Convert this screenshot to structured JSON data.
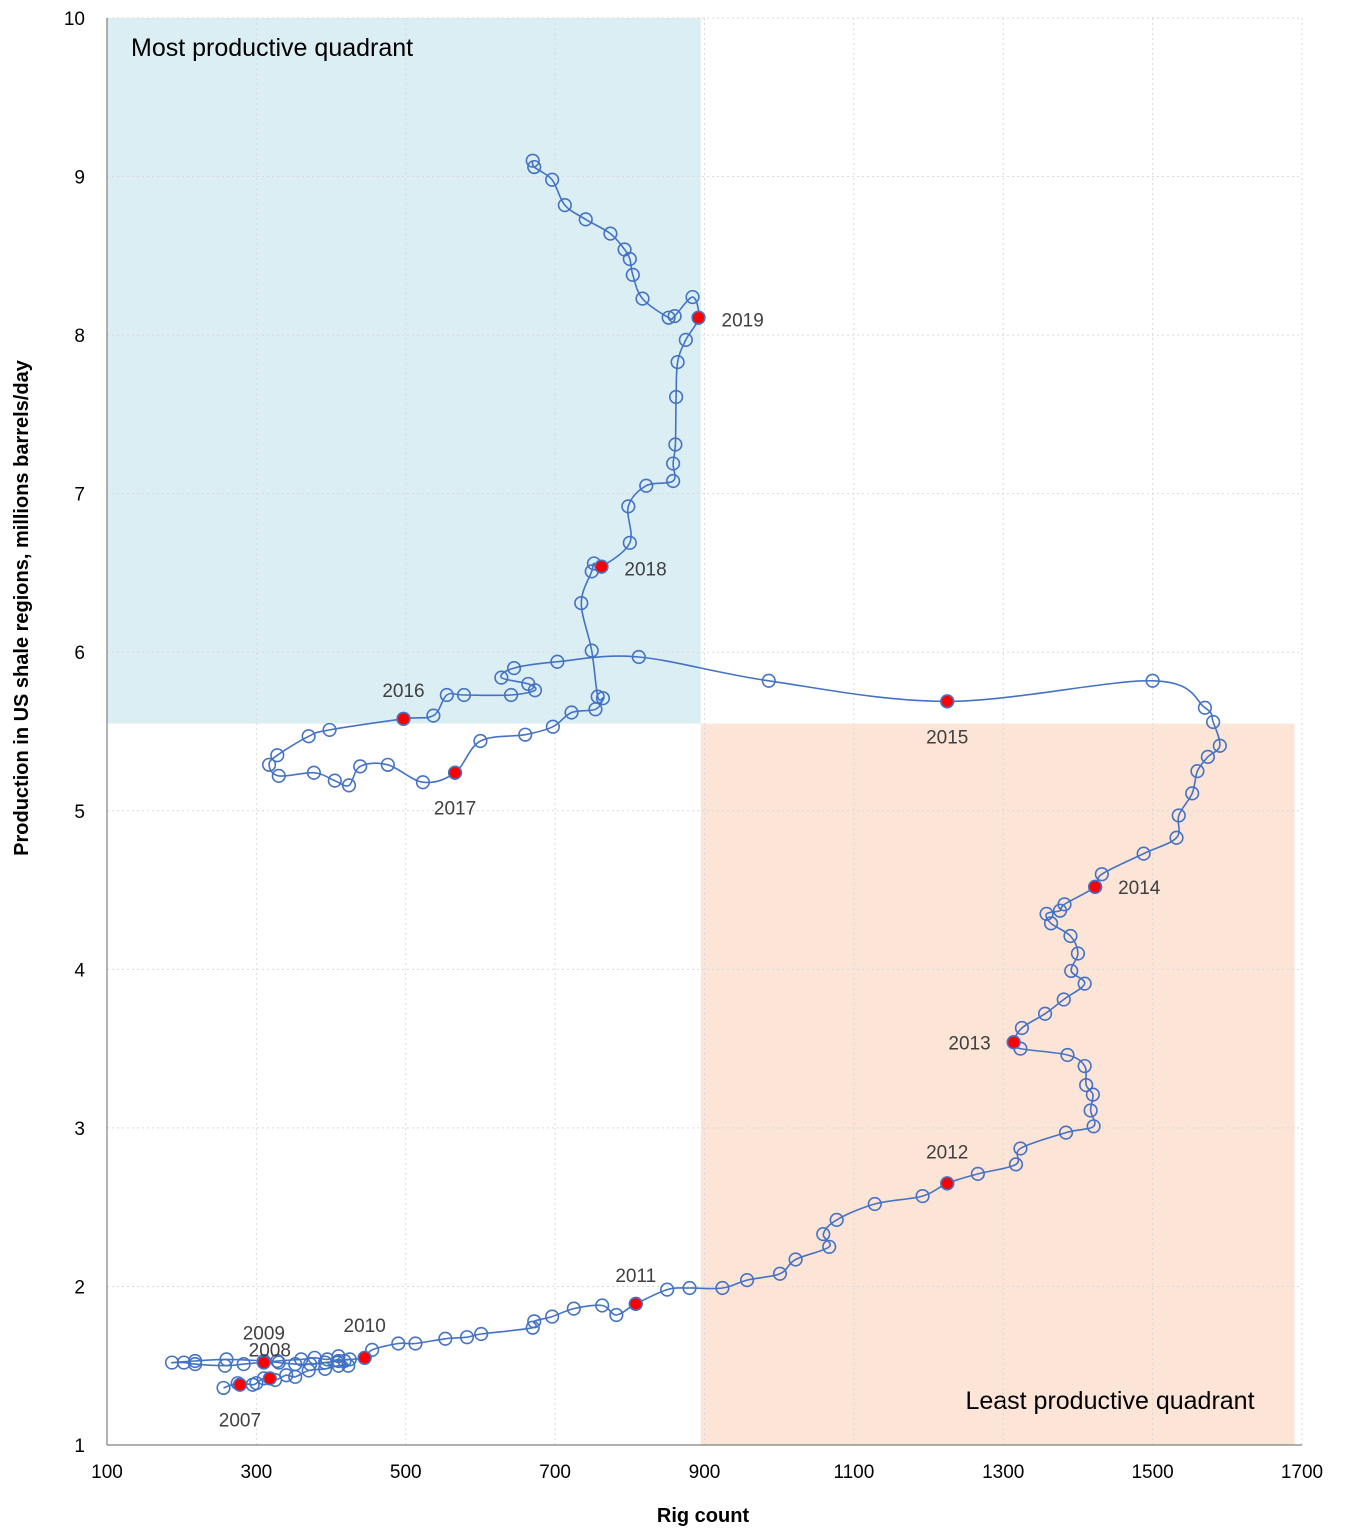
{
  "chart_data": {
    "type": "scatter",
    "xlabel": "Rig count",
    "ylabel": "Production in US shale regions, millions barrels/day",
    "xlim": [
      100,
      1700
    ],
    "ylim": [
      1,
      10
    ],
    "xticks": [
      "100",
      "300",
      "500",
      "700",
      "900",
      "1100",
      "1300",
      "1500",
      "1700"
    ],
    "yticks": [
      "1",
      "2",
      "3",
      "4",
      "5",
      "6",
      "7",
      "8",
      "9",
      "10"
    ],
    "grid": "dotted",
    "colors": {
      "line": "#4472C4",
      "marker": "#4472C4",
      "highlight": "#FF0000",
      "top_quadrant": "#DAEEF3",
      "bottom_quadrant": "#FCE4D6"
    },
    "quadrants": [
      {
        "label": "Most productive quadrant",
        "x_range": [
          100,
          895
        ],
        "y_range": [
          5.55,
          10
        ]
      },
      {
        "label": "Least productive quadrant",
        "x_range": [
          895,
          1690
        ],
        "y_range": [
          1,
          5.55
        ]
      }
    ],
    "series": [
      {
        "points": [
          [
            256,
            1.36
          ],
          [
            275,
            1.39
          ],
          [
            295,
            1.38
          ],
          [
            300,
            1.39
          ],
          [
            310,
            1.42
          ],
          [
            325,
            1.41
          ],
          [
            340,
            1.44
          ],
          [
            352,
            1.43
          ],
          [
            370,
            1.47
          ],
          [
            392,
            1.48
          ],
          [
            410,
            1.5
          ],
          [
            423,
            1.5
          ],
          [
            418,
            1.53
          ],
          [
            410,
            1.56
          ],
          [
            395,
            1.54
          ],
          [
            378,
            1.55
          ],
          [
            360,
            1.54
          ],
          [
            328,
            1.53
          ],
          [
            283,
            1.51
          ],
          [
            258,
            1.5
          ],
          [
            218,
            1.51
          ],
          [
            203,
            1.52
          ],
          [
            187,
            1.52
          ],
          [
            218,
            1.53
          ],
          [
            260,
            1.54
          ],
          [
            310,
            1.53
          ],
          [
            330,
            1.52
          ],
          [
            352,
            1.51
          ],
          [
            372,
            1.51
          ],
          [
            392,
            1.52
          ],
          [
            410,
            1.53
          ],
          [
            425,
            1.54
          ],
          [
            445,
            1.55
          ],
          [
            455,
            1.6
          ],
          [
            490,
            1.64
          ],
          [
            513,
            1.64
          ],
          [
            553,
            1.67
          ],
          [
            582,
            1.68
          ],
          [
            601,
            1.7
          ],
          [
            670,
            1.74
          ],
          [
            672,
            1.78
          ],
          [
            696,
            1.81
          ],
          [
            725,
            1.86
          ],
          [
            763,
            1.88
          ],
          [
            782,
            1.82
          ],
          [
            808,
            1.89
          ],
          [
            850,
            1.98
          ],
          [
            880,
            1.99
          ],
          [
            924,
            1.99
          ],
          [
            957,
            2.04
          ],
          [
            1001,
            2.08
          ],
          [
            1022,
            2.17
          ],
          [
            1067,
            2.25
          ],
          [
            1059,
            2.33
          ],
          [
            1077,
            2.42
          ],
          [
            1128,
            2.52
          ],
          [
            1192,
            2.57
          ],
          [
            1225,
            2.65
          ],
          [
            1266,
            2.71
          ],
          [
            1317,
            2.77
          ],
          [
            1323,
            2.87
          ],
          [
            1384,
            2.97
          ],
          [
            1421,
            3.01
          ],
          [
            1417,
            3.11
          ],
          [
            1420,
            3.21
          ],
          [
            1411,
            3.27
          ],
          [
            1409,
            3.39
          ],
          [
            1386,
            3.46
          ],
          [
            1323,
            3.5
          ],
          [
            1314,
            3.54
          ],
          [
            1325,
            3.63
          ],
          [
            1356,
            3.72
          ],
          [
            1381,
            3.81
          ],
          [
            1409,
            3.91
          ],
          [
            1391,
            3.99
          ],
          [
            1400,
            4.1
          ],
          [
            1390,
            4.21
          ],
          [
            1364,
            4.29
          ],
          [
            1358,
            4.35
          ],
          [
            1376,
            4.37
          ],
          [
            1382,
            4.41
          ],
          [
            1423,
            4.52
          ],
          [
            1432,
            4.6
          ],
          [
            1488,
            4.73
          ],
          [
            1532,
            4.83
          ],
          [
            1535,
            4.97
          ],
          [
            1553,
            5.11
          ],
          [
            1560,
            5.25
          ],
          [
            1574,
            5.34
          ],
          [
            1590,
            5.41
          ],
          [
            1581,
            5.56
          ],
          [
            1570,
            5.65
          ],
          [
            1500,
            5.82
          ],
          [
            1225,
            5.69
          ],
          [
            986,
            5.82
          ],
          [
            812,
            5.97
          ],
          [
            703,
            5.94
          ],
          [
            645,
            5.9
          ],
          [
            628,
            5.84
          ],
          [
            664,
            5.8
          ],
          [
            673,
            5.76
          ],
          [
            641,
            5.73
          ],
          [
            578,
            5.73
          ],
          [
            555,
            5.73
          ],
          [
            537,
            5.6
          ],
          [
            497,
            5.58
          ],
          [
            398,
            5.51
          ],
          [
            370,
            5.47
          ],
          [
            328,
            5.35
          ],
          [
            317,
            5.29
          ],
          [
            330,
            5.22
          ],
          [
            377,
            5.24
          ],
          [
            405,
            5.19
          ],
          [
            424,
            5.16
          ],
          [
            439,
            5.28
          ],
          [
            476,
            5.29
          ],
          [
            523,
            5.18
          ],
          [
            566,
            5.24
          ],
          [
            600,
            5.44
          ],
          [
            660,
            5.48
          ],
          [
            697,
            5.53
          ],
          [
            722,
            5.62
          ],
          [
            754,
            5.64
          ],
          [
            764,
            5.71
          ],
          [
            757,
            5.72
          ],
          [
            749,
            6.01
          ],
          [
            735,
            6.31
          ],
          [
            749,
            6.51
          ],
          [
            752,
            6.56
          ],
          [
            762,
            6.54
          ],
          [
            800,
            6.69
          ],
          [
            798,
            6.92
          ],
          [
            822,
            7.05
          ],
          [
            858,
            7.08
          ],
          [
            858,
            7.19
          ],
          [
            861,
            7.31
          ],
          [
            862,
            7.61
          ],
          [
            864,
            7.83
          ],
          [
            875,
            7.97
          ],
          [
            892,
            8.11
          ],
          [
            884,
            8.24
          ],
          [
            860,
            8.12
          ],
          [
            852,
            8.11
          ],
          [
            817,
            8.23
          ],
          [
            804,
            8.38
          ],
          [
            800,
            8.48
          ],
          [
            793,
            8.54
          ],
          [
            774,
            8.64
          ],
          [
            741,
            8.73
          ],
          [
            713,
            8.82
          ],
          [
            696,
            8.98
          ],
          [
            672,
            9.06
          ],
          [
            670,
            9.1
          ]
        ]
      }
    ],
    "highlighted_points": [
      {
        "year": "2007",
        "x": 278,
        "y": 1.38
      },
      {
        "year": "2008",
        "x": 318,
        "y": 1.42
      },
      {
        "year": "2009",
        "x": 310,
        "y": 1.52
      },
      {
        "year": "2010",
        "x": 445,
        "y": 1.55
      },
      {
        "year": "2011",
        "x": 808,
        "y": 1.89
      },
      {
        "year": "2012",
        "x": 1225,
        "y": 2.65
      },
      {
        "year": "2013",
        "x": 1314,
        "y": 3.54
      },
      {
        "year": "2014",
        "x": 1423,
        "y": 4.52
      },
      {
        "year": "2015",
        "x": 1225,
        "y": 5.69
      },
      {
        "year": "2016",
        "x": 497,
        "y": 5.58
      },
      {
        "year": "2017",
        "x": 566,
        "y": 5.24
      },
      {
        "year": "2018",
        "x": 762,
        "y": 6.54
      },
      {
        "year": "2019",
        "x": 892,
        "y": 8.11
      }
    ]
  }
}
